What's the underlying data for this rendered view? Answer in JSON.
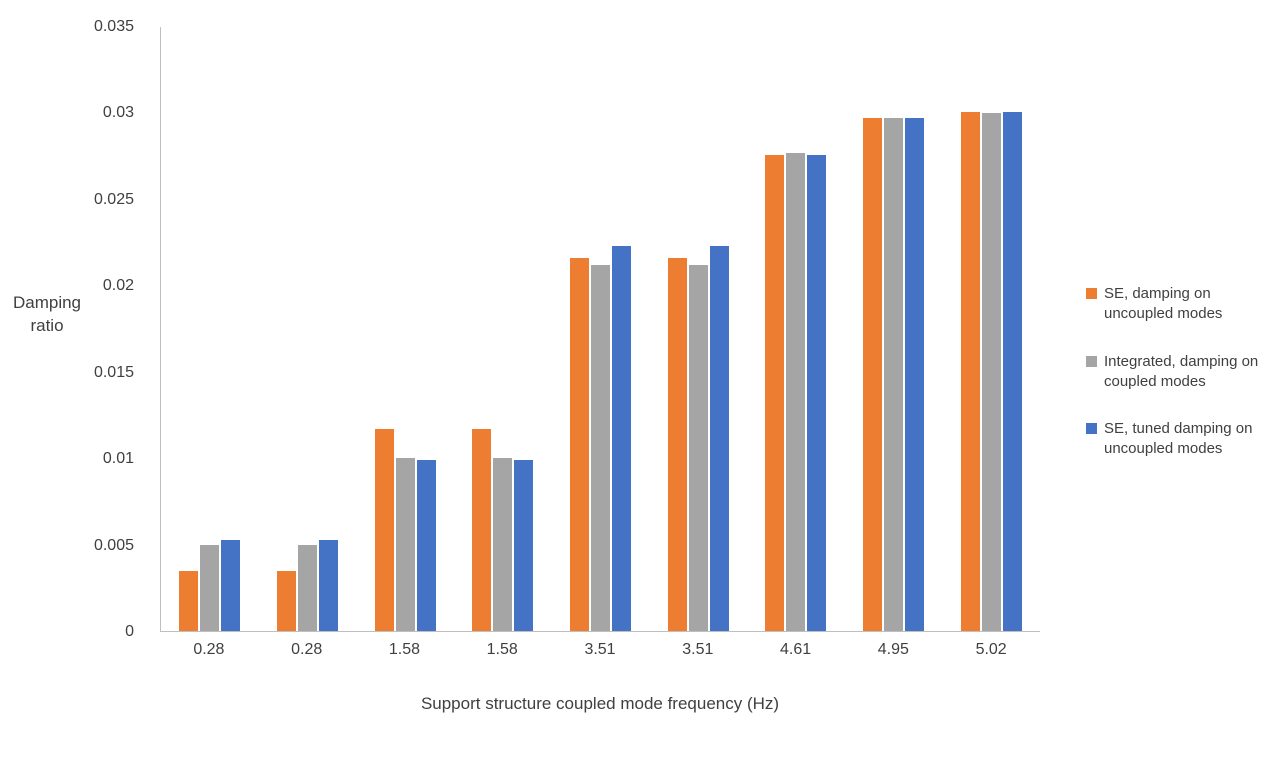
{
  "chart_data": {
    "type": "bar",
    "title": "",
    "xlabel": "Support structure coupled mode frequency (Hz)",
    "ylabel": "Damping ratio",
    "categories": [
      "0.28",
      "0.28",
      "1.58",
      "1.58",
      "3.51",
      "3.51",
      "4.61",
      "4.95",
      "5.02"
    ],
    "series": [
      {
        "name": "SE, damping on uncoupled modes",
        "color": "#ED7D31",
        "values": [
          0.0035,
          0.0035,
          0.0117,
          0.0117,
          0.0216,
          0.0216,
          0.0276,
          0.0297,
          0.0301
        ]
      },
      {
        "name": "Integrated, damping on coupled modes",
        "color": "#A5A5A5",
        "values": [
          0.005,
          0.005,
          0.01,
          0.01,
          0.0212,
          0.0212,
          0.0277,
          0.0297,
          0.03
        ]
      },
      {
        "name": "SE, tuned damping on uncoupled modes",
        "color": "#4472C4",
        "values": [
          0.0053,
          0.0053,
          0.0099,
          0.0099,
          0.0223,
          0.0223,
          0.0276,
          0.0297,
          0.0301
        ]
      }
    ],
    "ylim": [
      0,
      0.035
    ],
    "ytick_step": 0.005,
    "yticks_labels": [
      "0",
      "0.005",
      "0.01",
      "0.015",
      "0.02",
      "0.025",
      "0.03",
      "0.035"
    ],
    "grid": false,
    "legend_position": "right",
    "axis_color": "#bfbfbf",
    "text_color": "#404040"
  }
}
